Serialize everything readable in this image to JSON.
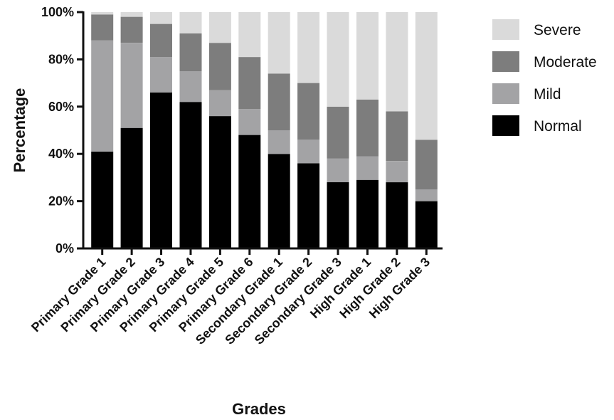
{
  "chart_data": {
    "type": "bar",
    "stacked": true,
    "xlabel": "Grades",
    "ylabel": "Percentage",
    "ylim": [
      0,
      100
    ],
    "yticks": [
      "0%",
      "20%",
      "40%",
      "60%",
      "80%",
      "100%"
    ],
    "categories": [
      "Primary Grade 1",
      "Primary Grade 2",
      "Primary Grade 3",
      "Primary Grade 4",
      "Primary Grade 5",
      "Primary Grade 6",
      "Secondary Grade 1",
      "Secondary Grade 2",
      "Secondary Grade 3",
      "High Grade 1",
      "High Grade 2",
      "High Grade 3"
    ],
    "series": [
      {
        "name": "Normal",
        "color": "#000000",
        "values": [
          41,
          51,
          66,
          62,
          56,
          48,
          40,
          36,
          28,
          29,
          28,
          20
        ]
      },
      {
        "name": "Mild",
        "color": "#a3a3a5",
        "values": [
          47,
          36,
          15,
          13,
          11,
          11,
          10,
          10,
          10,
          10,
          9,
          5
        ]
      },
      {
        "name": "Moderate",
        "color": "#7d7d7d",
        "values": [
          11,
          11,
          14,
          16,
          20,
          22,
          24,
          24,
          22,
          24,
          21,
          21
        ]
      },
      {
        "name": "Severe",
        "color": "#dadada",
        "values": [
          1,
          2,
          5,
          9,
          13,
          19,
          26,
          30,
          40,
          37,
          42,
          54
        ]
      }
    ],
    "legend_position": "right",
    "grid": false
  }
}
